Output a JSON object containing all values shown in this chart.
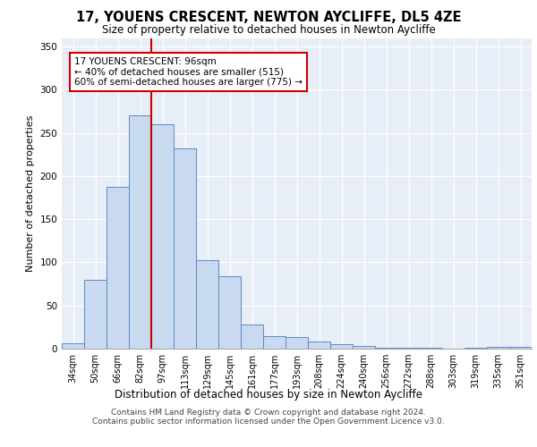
{
  "title1": "17, YOUENS CRESCENT, NEWTON AYCLIFFE, DL5 4ZE",
  "title2": "Size of property relative to detached houses in Newton Aycliffe",
  "xlabel": "Distribution of detached houses by size in Newton Aycliffe",
  "ylabel": "Number of detached properties",
  "categories": [
    "34sqm",
    "50sqm",
    "66sqm",
    "82sqm",
    "97sqm",
    "113sqm",
    "129sqm",
    "145sqm",
    "161sqm",
    "177sqm",
    "193sqm",
    "208sqm",
    "224sqm",
    "240sqm",
    "256sqm",
    "272sqm",
    "288sqm",
    "303sqm",
    "319sqm",
    "335sqm",
    "351sqm"
  ],
  "values": [
    6,
    80,
    187,
    270,
    260,
    232,
    103,
    84,
    28,
    15,
    13,
    8,
    5,
    3,
    1,
    1,
    1,
    0,
    1,
    2,
    2
  ],
  "bar_color": "#c9d9f0",
  "bar_edge_color": "#5a8ac6",
  "vline_color": "#cc0000",
  "vline_index": 3.5,
  "annotation_text": "17 YOUENS CRESCENT: 96sqm\n← 40% of detached houses are smaller (515)\n60% of semi-detached houses are larger (775) →",
  "annotation_box_color": "#ffffff",
  "annotation_box_edge": "#cc0000",
  "ylim": [
    0,
    360
  ],
  "yticks": [
    0,
    50,
    100,
    150,
    200,
    250,
    300,
    350
  ],
  "background_color": "#e8eef8",
  "footer1": "Contains HM Land Registry data © Crown copyright and database right 2024.",
  "footer2": "Contains public sector information licensed under the Open Government Licence v3.0."
}
